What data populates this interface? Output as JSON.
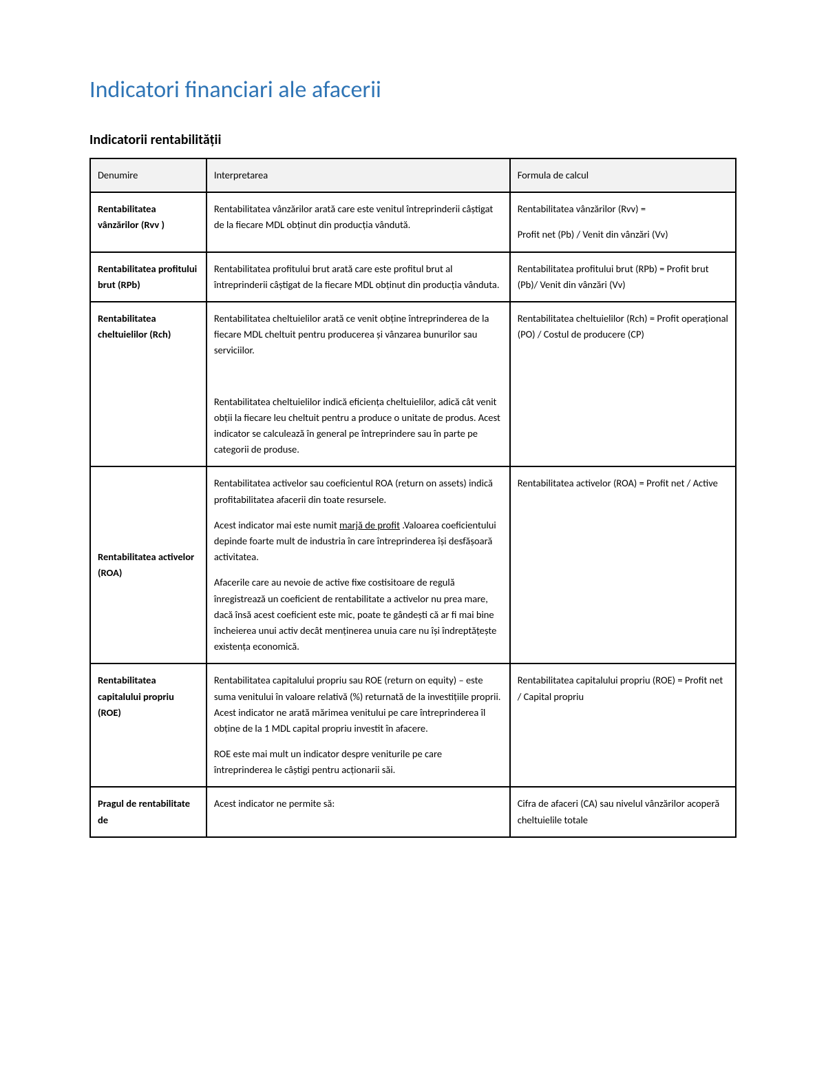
{
  "title": "Indicatori financiari ale afacerii",
  "section": "Indicatorii rentabilității",
  "columns": {
    "name": "Denumire",
    "interp": "Interpretarea",
    "formula": "Formula de calcul"
  },
  "rows": [
    {
      "name": "Rentabilitatea vânzărilor (Rvv )",
      "interp": [
        "Rentabilitatea vânzărilor arată care este venitul întreprinderii câștigat de la fiecare MDL obținut din producția vândută."
      ],
      "formula": [
        "Rentabilitatea vânzărilor (Rvv) =",
        "Profit net (Pb) / Venit din vânzări (Vv)"
      ]
    },
    {
      "name": "Rentabilitatea profitului brut (RPb)",
      "interp": [
        "Rentabilitatea profitului brut arată care este profitul brut al întreprinderii câștigat de la fiecare MDL obținut din producția vânduta."
      ],
      "formula": [
        "Rentabilitatea profitului brut (RPb)   = Profit brut (Pb)/ Venit din vânzări (Vv)"
      ]
    },
    {
      "name": "Rentabilitatea cheltuielilor (Rch)",
      "interp": [
        "Rentabilitatea cheltuielilor arată ce venit obține întreprinderea de la fiecare MDL cheltuit pentru producerea și vânzarea bunurilor sau serviciilor.",
        "",
        "Rentabilitatea cheltuielilor indică eficiența cheltuielilor, adică cât venit obții la fiecare leu cheltuit pentru a produce o unitate de produs. Acest indicator se calculează în general pe întreprindere sau în parte pe categorii de produse."
      ],
      "formula": [
        "Rentabilitatea cheltuielilor (Rch) = Profit operațional (PO) / Costul de producere (CP)"
      ]
    },
    {
      "name": "Rentabilitatea activelor (ROA)",
      "name_valign": "middle",
      "interp": [
        "Rentabilitatea activelor sau coeficientul ROA (return on assets) indică profitabilitatea afacerii din toate resursele.",
        "Acest indicator mai este numit {u}marjă de profit{/u} .Valoarea coeficientului depinde foarte mult de industria în care întreprinderea își desfășoară activitatea.",
        "Afacerile care au nevoie de active fixe costisitoare de regulă  înregistrează un coeficient de rentabilitate a activelor nu prea mare, dacă însă acest coeficient este mic, poate te gândești că ar fi mai bine încheierea unui activ decât menținerea unuia care nu își îndreptățește existența economică."
      ],
      "formula": [
        "Rentabilitatea activelor (ROA) = Profit net / Active"
      ]
    },
    {
      "name": "Rentabilitatea capitalului propriu (ROE)",
      "interp": [
        "Rentabilitatea capitalului propriu sau ROE (return on equity) – este suma venitului în valoare relativă (%) returnată de la investițiile proprii. Acest indicator ne arată mărimea venitului pe care întreprinderea îl obține de la 1 MDL capital propriu investit în afacere.",
        "ROE este mai mult un indicator despre veniturile pe care întreprinderea le câștigi pentru acționarii săi."
      ],
      "formula": [
        "Rentabilitatea capitalului propriu (ROE)  = Profit net  / Capital propriu"
      ]
    },
    {
      "name": "Pragul de rentabilitate de",
      "interp": [
        "Acest indicator ne permite să:"
      ],
      "formula": [
        "Cifra de afaceri (CA) sau nivelul vânzărilor acoperă cheltuielile totale"
      ]
    }
  ],
  "colors": {
    "title": "#2e74b5",
    "border": "#000000",
    "header_bg": "#f2f2f2",
    "text": "#000000",
    "page_bg": "#ffffff"
  }
}
